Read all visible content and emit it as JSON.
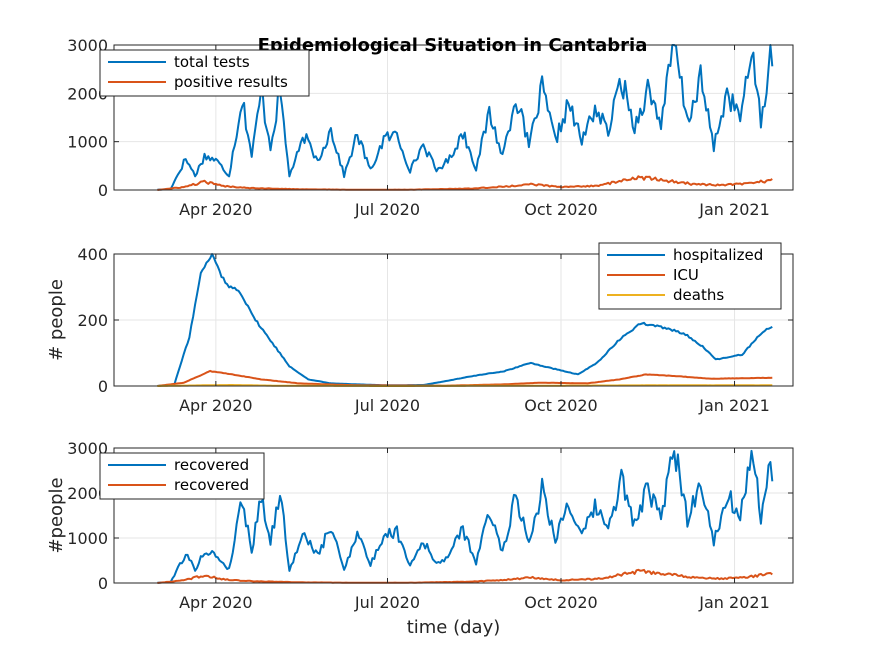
{
  "chart_data": [
    {
      "type": "line",
      "title": "Epidemiological Situation in Cantabria",
      "ylabel": "",
      "xlabel": "",
      "x_start": "2020-03-01",
      "x_end": "2021-01-21",
      "xlim": [
        "2020-02-07",
        "2021-02-01"
      ],
      "ylim": [
        0,
        3000
      ],
      "yticks": [
        0,
        1000,
        2000,
        3000
      ],
      "xticks": [
        {
          "date": "2020-04-01",
          "label": "Apr 2020"
        },
        {
          "date": "2020-07-01",
          "label": "Jul 2020"
        },
        {
          "date": "2020-10-01",
          "label": "Oct 2020"
        },
        {
          "date": "2021-01-01",
          "label": "Jan 2021"
        }
      ],
      "grid": true,
      "legend_position": "top-left",
      "series": [
        {
          "name": "total tests",
          "color": "#0072BD",
          "points": [
            [
              "2020-03-01",
              5
            ],
            [
              "2020-03-08",
              20
            ],
            [
              "2020-03-16",
              650
            ],
            [
              "2020-03-21",
              300
            ],
            [
              "2020-03-26",
              700
            ],
            [
              "2020-04-01",
              620
            ],
            [
              "2020-04-08",
              300
            ],
            [
              "2020-04-15",
              1900
            ],
            [
              "2020-04-20",
              700
            ],
            [
              "2020-04-25",
              2000
            ],
            [
              "2020-04-30",
              900
            ],
            [
              "2020-05-05",
              2050
            ],
            [
              "2020-05-10",
              300
            ],
            [
              "2020-05-18",
              1100
            ],
            [
              "2020-05-25",
              600
            ],
            [
              "2020-06-01",
              1250
            ],
            [
              "2020-06-08",
              300
            ],
            [
              "2020-06-15",
              1150
            ],
            [
              "2020-06-22",
              400
            ],
            [
              "2020-06-29",
              1050
            ],
            [
              "2020-07-06",
              1150
            ],
            [
              "2020-07-13",
              400
            ],
            [
              "2020-07-20",
              950
            ],
            [
              "2020-07-27",
              400
            ],
            [
              "2020-08-03",
              650
            ],
            [
              "2020-08-10",
              1200
            ],
            [
              "2020-08-17",
              450
            ],
            [
              "2020-08-24",
              1600
            ],
            [
              "2020-08-31",
              700
            ],
            [
              "2020-09-07",
              1950
            ],
            [
              "2020-09-14",
              900
            ],
            [
              "2020-09-21",
              2100
            ],
            [
              "2020-09-28",
              1000
            ],
            [
              "2020-10-05",
              1800
            ],
            [
              "2020-10-12",
              1000
            ],
            [
              "2020-10-19",
              1700
            ],
            [
              "2020-10-26",
              1200
            ],
            [
              "2020-11-02",
              2300
            ],
            [
              "2020-11-09",
              1300
            ],
            [
              "2020-11-16",
              2100
            ],
            [
              "2020-11-23",
              1400
            ],
            [
              "2020-11-30",
              3050
            ],
            [
              "2020-12-07",
              1400
            ],
            [
              "2020-12-14",
              2300
            ],
            [
              "2020-12-21",
              900
            ],
            [
              "2020-12-28",
              2000
            ],
            [
              "2021-01-04",
              1500
            ],
            [
              "2021-01-11",
              2900
            ],
            [
              "2021-01-15",
              1300
            ],
            [
              "2021-01-18",
              2100
            ],
            [
              "2021-01-20",
              3050
            ],
            [
              "2021-01-21",
              2500
            ]
          ]
        },
        {
          "name": "positive results",
          "color": "#D95319",
          "points": [
            [
              "2020-03-01",
              0
            ],
            [
              "2020-03-15",
              60
            ],
            [
              "2020-03-26",
              170
            ],
            [
              "2020-04-05",
              80
            ],
            [
              "2020-04-20",
              40
            ],
            [
              "2020-05-15",
              15
            ],
            [
              "2020-06-15",
              5
            ],
            [
              "2020-07-15",
              8
            ],
            [
              "2020-08-15",
              30
            ],
            [
              "2020-09-01",
              70
            ],
            [
              "2020-09-15",
              120
            ],
            [
              "2020-10-01",
              60
            ],
            [
              "2020-10-20",
              90
            ],
            [
              "2020-11-01",
              180
            ],
            [
              "2020-11-12",
              260
            ],
            [
              "2020-11-25",
              200
            ],
            [
              "2020-12-10",
              120
            ],
            [
              "2020-12-25",
              100
            ],
            [
              "2021-01-08",
              130
            ],
            [
              "2021-01-21",
              210
            ]
          ]
        }
      ]
    },
    {
      "type": "line",
      "title": "",
      "ylabel": "# people",
      "xlabel": "",
      "x_start": "2020-03-01",
      "x_end": "2021-01-21",
      "xlim": [
        "2020-02-07",
        "2021-02-01"
      ],
      "ylim": [
        0,
        400
      ],
      "yticks": [
        0,
        200,
        400
      ],
      "xticks": [
        {
          "date": "2020-04-01",
          "label": "Apr 2020"
        },
        {
          "date": "2020-07-01",
          "label": "Jul 2020"
        },
        {
          "date": "2020-10-01",
          "label": "Oct 2020"
        },
        {
          "date": "2021-01-01",
          "label": "Jan 2021"
        }
      ],
      "grid": true,
      "legend_position": "top-right",
      "series": [
        {
          "name": "hospitalized",
          "color": "#0072BD",
          "points": [
            [
              "2020-03-01",
              0
            ],
            [
              "2020-03-10",
              5
            ],
            [
              "2020-03-18",
              150
            ],
            [
              "2020-03-24",
              340
            ],
            [
              "2020-03-30",
              400
            ],
            [
              "2020-04-06",
              310
            ],
            [
              "2020-04-14",
              285
            ],
            [
              "2020-04-22",
              200
            ],
            [
              "2020-05-01",
              130
            ],
            [
              "2020-05-10",
              60
            ],
            [
              "2020-05-20",
              20
            ],
            [
              "2020-06-01",
              8
            ],
            [
              "2020-06-15",
              5
            ],
            [
              "2020-07-01",
              2
            ],
            [
              "2020-07-20",
              3
            ],
            [
              "2020-08-01",
              15
            ],
            [
              "2020-08-15",
              30
            ],
            [
              "2020-09-01",
              45
            ],
            [
              "2020-09-15",
              70
            ],
            [
              "2020-09-25",
              55
            ],
            [
              "2020-10-10",
              35
            ],
            [
              "2020-10-20",
              70
            ],
            [
              "2020-11-01",
              140
            ],
            [
              "2020-11-12",
              190
            ],
            [
              "2020-11-22",
              180
            ],
            [
              "2020-12-05",
              160
            ],
            [
              "2020-12-15",
              120
            ],
            [
              "2020-12-22",
              80
            ],
            [
              "2021-01-05",
              95
            ],
            [
              "2021-01-15",
              160
            ],
            [
              "2021-01-21",
              180
            ]
          ]
        },
        {
          "name": "ICU",
          "color": "#D95319",
          "points": [
            [
              "2020-03-01",
              0
            ],
            [
              "2020-03-15",
              10
            ],
            [
              "2020-03-29",
              45
            ],
            [
              "2020-04-10",
              35
            ],
            [
              "2020-04-25",
              20
            ],
            [
              "2020-05-15",
              8
            ],
            [
              "2020-06-15",
              2
            ],
            [
              "2020-08-01",
              1
            ],
            [
              "2020-09-01",
              5
            ],
            [
              "2020-09-20",
              10
            ],
            [
              "2020-10-15",
              8
            ],
            [
              "2020-11-01",
              20
            ],
            [
              "2020-11-15",
              35
            ],
            [
              "2020-12-01",
              30
            ],
            [
              "2020-12-20",
              22
            ],
            [
              "2021-01-21",
              25
            ]
          ]
        },
        {
          "name": "deaths",
          "color": "#EDB120",
          "points": [
            [
              "2020-03-01",
              0
            ],
            [
              "2020-03-25",
              2
            ],
            [
              "2020-04-10",
              3
            ],
            [
              "2020-05-01",
              1
            ],
            [
              "2020-07-01",
              0
            ],
            [
              "2020-10-01",
              1
            ],
            [
              "2020-11-15",
              2
            ],
            [
              "2021-01-21",
              2
            ]
          ]
        }
      ]
    },
    {
      "type": "line",
      "title": "",
      "ylabel": "#people",
      "xlabel": "time (day)",
      "x_start": "2020-03-01",
      "x_end": "2021-01-21",
      "xlim": [
        "2020-02-07",
        "2021-02-01"
      ],
      "ylim": [
        0,
        3000
      ],
      "yticks": [
        0,
        1000,
        2000,
        3000
      ],
      "xticks": [
        {
          "date": "2020-04-01",
          "label": "Apr 2020"
        },
        {
          "date": "2020-07-01",
          "label": "Jul 2020"
        },
        {
          "date": "2020-10-01",
          "label": "Oct 2020"
        },
        {
          "date": "2021-01-01",
          "label": "Jan 2021"
        }
      ],
      "grid": true,
      "legend_position": "top-left",
      "series": [
        {
          "name": "recovered",
          "color": "#0072BD",
          "points": [
            [
              "2020-03-01",
              5
            ],
            [
              "2020-03-08",
              20
            ],
            [
              "2020-03-16",
              650
            ],
            [
              "2020-03-21",
              300
            ],
            [
              "2020-03-26",
              700
            ],
            [
              "2020-04-01",
              620
            ],
            [
              "2020-04-08",
              300
            ],
            [
              "2020-04-15",
              1900
            ],
            [
              "2020-04-20",
              700
            ],
            [
              "2020-04-25",
              2000
            ],
            [
              "2020-04-30",
              900
            ],
            [
              "2020-05-05",
              2050
            ],
            [
              "2020-05-10",
              300
            ],
            [
              "2020-05-18",
              1100
            ],
            [
              "2020-05-25",
              600
            ],
            [
              "2020-06-01",
              1250
            ],
            [
              "2020-06-08",
              300
            ],
            [
              "2020-06-15",
              1150
            ],
            [
              "2020-06-22",
              400
            ],
            [
              "2020-06-29",
              1050
            ],
            [
              "2020-07-06",
              1150
            ],
            [
              "2020-07-13",
              400
            ],
            [
              "2020-07-20",
              950
            ],
            [
              "2020-07-27",
              400
            ],
            [
              "2020-08-03",
              650
            ],
            [
              "2020-08-10",
              1200
            ],
            [
              "2020-08-17",
              450
            ],
            [
              "2020-08-24",
              1600
            ],
            [
              "2020-08-31",
              700
            ],
            [
              "2020-09-07",
              1950
            ],
            [
              "2020-09-14",
              900
            ],
            [
              "2020-09-21",
              2100
            ],
            [
              "2020-09-28",
              1000
            ],
            [
              "2020-10-05",
              1800
            ],
            [
              "2020-10-12",
              1000
            ],
            [
              "2020-10-19",
              1700
            ],
            [
              "2020-10-26",
              1200
            ],
            [
              "2020-11-02",
              2300
            ],
            [
              "2020-11-09",
              1300
            ],
            [
              "2020-11-16",
              2100
            ],
            [
              "2020-11-23",
              1400
            ],
            [
              "2020-11-30",
              3050
            ],
            [
              "2020-12-07",
              1400
            ],
            [
              "2020-12-14",
              2300
            ],
            [
              "2020-12-21",
              900
            ],
            [
              "2020-12-28",
              2000
            ],
            [
              "2021-01-04",
              1500
            ],
            [
              "2021-01-11",
              2900
            ],
            [
              "2021-01-15",
              1300
            ],
            [
              "2021-01-18",
              2100
            ],
            [
              "2021-01-20",
              3050
            ],
            [
              "2021-01-21",
              2500
            ]
          ]
        },
        {
          "name": "recovered",
          "color": "#D95319",
          "points": [
            [
              "2020-03-01",
              0
            ],
            [
              "2020-03-15",
              60
            ],
            [
              "2020-03-26",
              170
            ],
            [
              "2020-04-05",
              80
            ],
            [
              "2020-04-20",
              40
            ],
            [
              "2020-05-15",
              15
            ],
            [
              "2020-06-15",
              5
            ],
            [
              "2020-07-15",
              8
            ],
            [
              "2020-08-15",
              30
            ],
            [
              "2020-09-01",
              70
            ],
            [
              "2020-09-15",
              120
            ],
            [
              "2020-10-01",
              60
            ],
            [
              "2020-10-20",
              90
            ],
            [
              "2020-11-01",
              180
            ],
            [
              "2020-11-12",
              260
            ],
            [
              "2020-11-25",
              200
            ],
            [
              "2020-12-10",
              120
            ],
            [
              "2020-12-25",
              100
            ],
            [
              "2021-01-08",
              130
            ],
            [
              "2021-01-21",
              210
            ]
          ]
        }
      ]
    }
  ]
}
